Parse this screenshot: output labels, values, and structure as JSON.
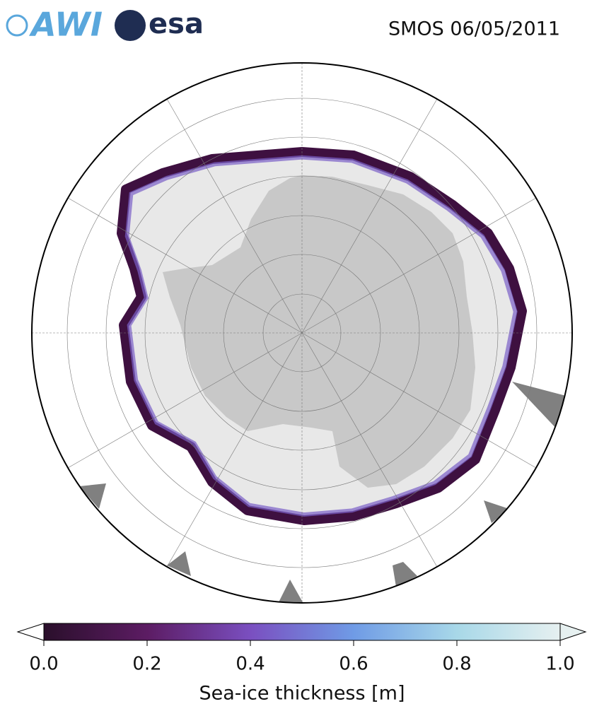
{
  "header": {
    "logo_left": "AWI",
    "logo_right": "esa",
    "title": "SMOS 06/05/2011"
  },
  "colorbar": {
    "label": "Sea-ice thickness [m]",
    "lim": [
      0,
      1
    ],
    "ticks": [
      {
        "value": 0,
        "label": "0.0"
      },
      {
        "value": 0.2,
        "label": "0.2"
      },
      {
        "value": 0.4,
        "label": "0.4"
      },
      {
        "value": 0.6,
        "label": "0.6"
      },
      {
        "value": 0.8,
        "label": "0.8"
      },
      {
        "value": 1,
        "label": "1.0"
      }
    ],
    "colors": [
      "#2a0f2b",
      "#5c1c63",
      "#7a4fc0",
      "#6f9be6",
      "#a8d8e8",
      "#e6f0f0"
    ],
    "under_color": "#ffffff",
    "over_color": "#e6f0f0"
  }
}
